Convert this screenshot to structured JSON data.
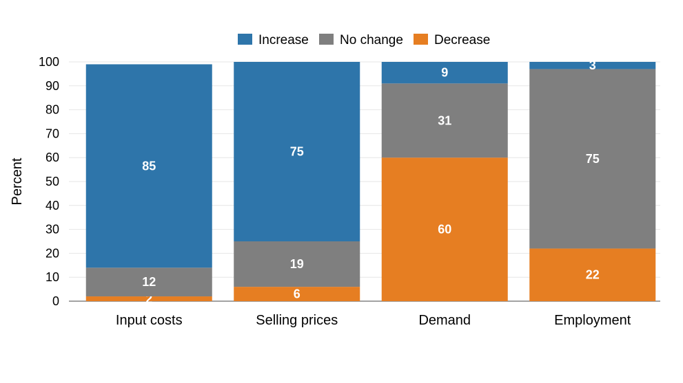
{
  "chart_data": {
    "type": "bar",
    "stacked": true,
    "categories": [
      "Input costs",
      "Selling prices",
      "Demand",
      "Employment"
    ],
    "series": [
      {
        "name": "Decrease",
        "values": [
          2,
          6,
          60,
          22
        ],
        "color": "#e67e22"
      },
      {
        "name": "No change",
        "values": [
          12,
          19,
          31,
          75
        ],
        "color": "#7f7f7f"
      },
      {
        "name": "Increase",
        "values": [
          85,
          75,
          9,
          3
        ],
        "color": "#2e75aa"
      }
    ],
    "legend_order": [
      "Increase",
      "No change",
      "Decrease"
    ],
    "legend_position": "top-center",
    "ylabel": "Percent",
    "xlabel": "",
    "ylim": [
      0,
      100
    ],
    "yticks": [
      0,
      10,
      20,
      30,
      40,
      50,
      60,
      70,
      80,
      90,
      100
    ],
    "grid": true,
    "data_label_color": "#ffffff"
  }
}
